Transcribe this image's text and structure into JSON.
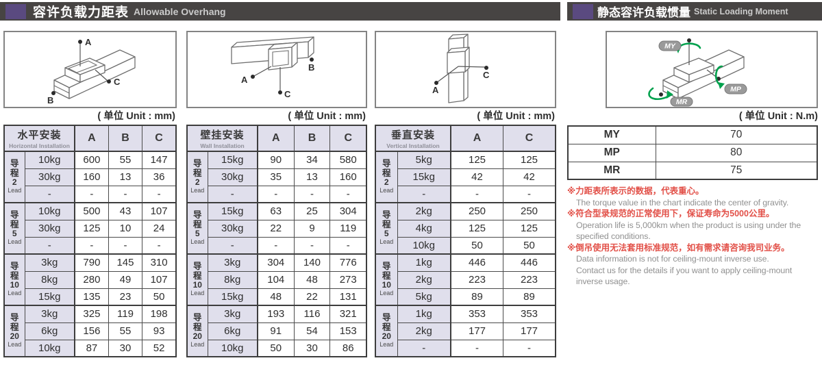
{
  "colors": {
    "bar-bg": "#474443",
    "accent-purple": "#5a4a80",
    "lavender": "#e0dfec",
    "note-red": "#e25048",
    "green": "#00a14d"
  },
  "headers": {
    "left": {
      "zh": "容许负载力距表",
      "en": "Allowable Overhang"
    },
    "right": {
      "zh": "静态容许负载惯量",
      "en": "Static Loading Moment"
    }
  },
  "unit_mm": "( 单位 Unit : mm)",
  "unit_nm": "( 单位 Unit : N.m)",
  "diagram_labels": {
    "a": "A",
    "b": "B",
    "c": "C",
    "my": "MY",
    "mp": "MP",
    "mr": "MR"
  },
  "tables": [
    {
      "title_zh": "水平安装",
      "title_en": "Horizontal Installation",
      "columns": [
        "A",
        "B",
        "C"
      ],
      "groups": [
        {
          "lead_zh": "导程",
          "lead_num": "2",
          "lead_en": "Lead",
          "rows": [
            {
              "load": "10kg",
              "values": [
                "600",
                "55",
                "147"
              ]
            },
            {
              "load": "30kg",
              "values": [
                "160",
                "13",
                "36"
              ]
            },
            {
              "load": "-",
              "values": [
                "-",
                "-",
                "-"
              ]
            }
          ]
        },
        {
          "lead_zh": "导程",
          "lead_num": "5",
          "lead_en": "Lead",
          "rows": [
            {
              "load": "10kg",
              "values": [
                "500",
                "43",
                "107"
              ]
            },
            {
              "load": "30kg",
              "values": [
                "125",
                "10",
                "24"
              ]
            },
            {
              "load": "-",
              "values": [
                "-",
                "-",
                "-"
              ]
            }
          ]
        },
        {
          "lead_zh": "导程",
          "lead_num": "10",
          "lead_en": "Lead",
          "rows": [
            {
              "load": "3kg",
              "values": [
                "790",
                "145",
                "310"
              ]
            },
            {
              "load": "8kg",
              "values": [
                "280",
                "49",
                "107"
              ]
            },
            {
              "load": "15kg",
              "values": [
                "135",
                "23",
                "50"
              ]
            }
          ]
        },
        {
          "lead_zh": "导程",
          "lead_num": "20",
          "lead_en": "Lead",
          "rows": [
            {
              "load": "3kg",
              "values": [
                "325",
                "119",
                "198"
              ]
            },
            {
              "load": "6kg",
              "values": [
                "156",
                "55",
                "93"
              ]
            },
            {
              "load": "10kg",
              "values": [
                "87",
                "30",
                "52"
              ]
            }
          ]
        }
      ]
    },
    {
      "title_zh": "壁挂安装",
      "title_en": "Wall Installation",
      "columns": [
        "A",
        "B",
        "C"
      ],
      "groups": [
        {
          "lead_zh": "导程",
          "lead_num": "2",
          "lead_en": "Lead",
          "rows": [
            {
              "load": "15kg",
              "values": [
                "90",
                "34",
                "580"
              ]
            },
            {
              "load": "30kg",
              "values": [
                "35",
                "13",
                "160"
              ]
            },
            {
              "load": "-",
              "values": [
                "-",
                "-",
                "-"
              ]
            }
          ]
        },
        {
          "lead_zh": "导程",
          "lead_num": "5",
          "lead_en": "Lead",
          "rows": [
            {
              "load": "15kg",
              "values": [
                "63",
                "25",
                "304"
              ]
            },
            {
              "load": "30kg",
              "values": [
                "22",
                "9",
                "119"
              ]
            },
            {
              "load": "-",
              "values": [
                "-",
                "-",
                "-"
              ]
            }
          ]
        },
        {
          "lead_zh": "导程",
          "lead_num": "10",
          "lead_en": "Lead",
          "rows": [
            {
              "load": "3kg",
              "values": [
                "304",
                "140",
                "776"
              ]
            },
            {
              "load": "8kg",
              "values": [
                "104",
                "48",
                "273"
              ]
            },
            {
              "load": "15kg",
              "values": [
                "48",
                "22",
                "131"
              ]
            }
          ]
        },
        {
          "lead_zh": "导程",
          "lead_num": "20",
          "lead_en": "Lead",
          "rows": [
            {
              "load": "3kg",
              "values": [
                "193",
                "116",
                "321"
              ]
            },
            {
              "load": "6kg",
              "values": [
                "91",
                "54",
                "153"
              ]
            },
            {
              "load": "10kg",
              "values": [
                "50",
                "30",
                "86"
              ]
            }
          ]
        }
      ]
    },
    {
      "title_zh": "垂直安装",
      "title_en": "Vertical Installation",
      "columns": [
        "A",
        "C"
      ],
      "groups": [
        {
          "lead_zh": "导程",
          "lead_num": "2",
          "lead_en": "Lead",
          "rows": [
            {
              "load": "5kg",
              "values": [
                "125",
                "125"
              ]
            },
            {
              "load": "15kg",
              "values": [
                "42",
                "42"
              ]
            },
            {
              "load": "-",
              "values": [
                "-",
                "-"
              ]
            }
          ]
        },
        {
          "lead_zh": "导程",
          "lead_num": "5",
          "lead_en": "Lead",
          "rows": [
            {
              "load": "2kg",
              "values": [
                "250",
                "250"
              ]
            },
            {
              "load": "4kg",
              "values": [
                "125",
                "125"
              ]
            },
            {
              "load": "10kg",
              "values": [
                "50",
                "50"
              ]
            }
          ]
        },
        {
          "lead_zh": "导程",
          "lead_num": "10",
          "lead_en": "Lead",
          "rows": [
            {
              "load": "1kg",
              "values": [
                "446",
                "446"
              ]
            },
            {
              "load": "2kg",
              "values": [
                "223",
                "223"
              ]
            },
            {
              "load": "5kg",
              "values": [
                "89",
                "89"
              ]
            }
          ]
        },
        {
          "lead_zh": "导程",
          "lead_num": "20",
          "lead_en": "Lead",
          "rows": [
            {
              "load": "1kg",
              "values": [
                "353",
                "353"
              ]
            },
            {
              "load": "2kg",
              "values": [
                "177",
                "177"
              ]
            },
            {
              "load": "-",
              "values": [
                "-",
                "-"
              ]
            }
          ]
        }
      ]
    }
  ],
  "moment_table": {
    "rows": [
      {
        "label": "MY",
        "value": "70"
      },
      {
        "label": "MP",
        "value": "80"
      },
      {
        "label": "MR",
        "value": "75"
      }
    ]
  },
  "notes": [
    {
      "zh": "※力距表所表示的数据，代表重心。",
      "en": [
        "The torque value in the chart indicate the center of gravity."
      ]
    },
    {
      "zh": "※符合型录规范的正常使用下，保证寿命为5000公里。",
      "en": [
        "Operation life is 5,000km when the product is using under the",
        "specified conditions."
      ]
    },
    {
      "zh": "※倒吊使用无法套用标准规范，如有需求请咨询我司业务。",
      "en": [
        "Data information is not for ceiling-mount inverse use.",
        "Contact us for the details if you want to apply ceiling-mount",
        "inverse usage."
      ]
    }
  ]
}
